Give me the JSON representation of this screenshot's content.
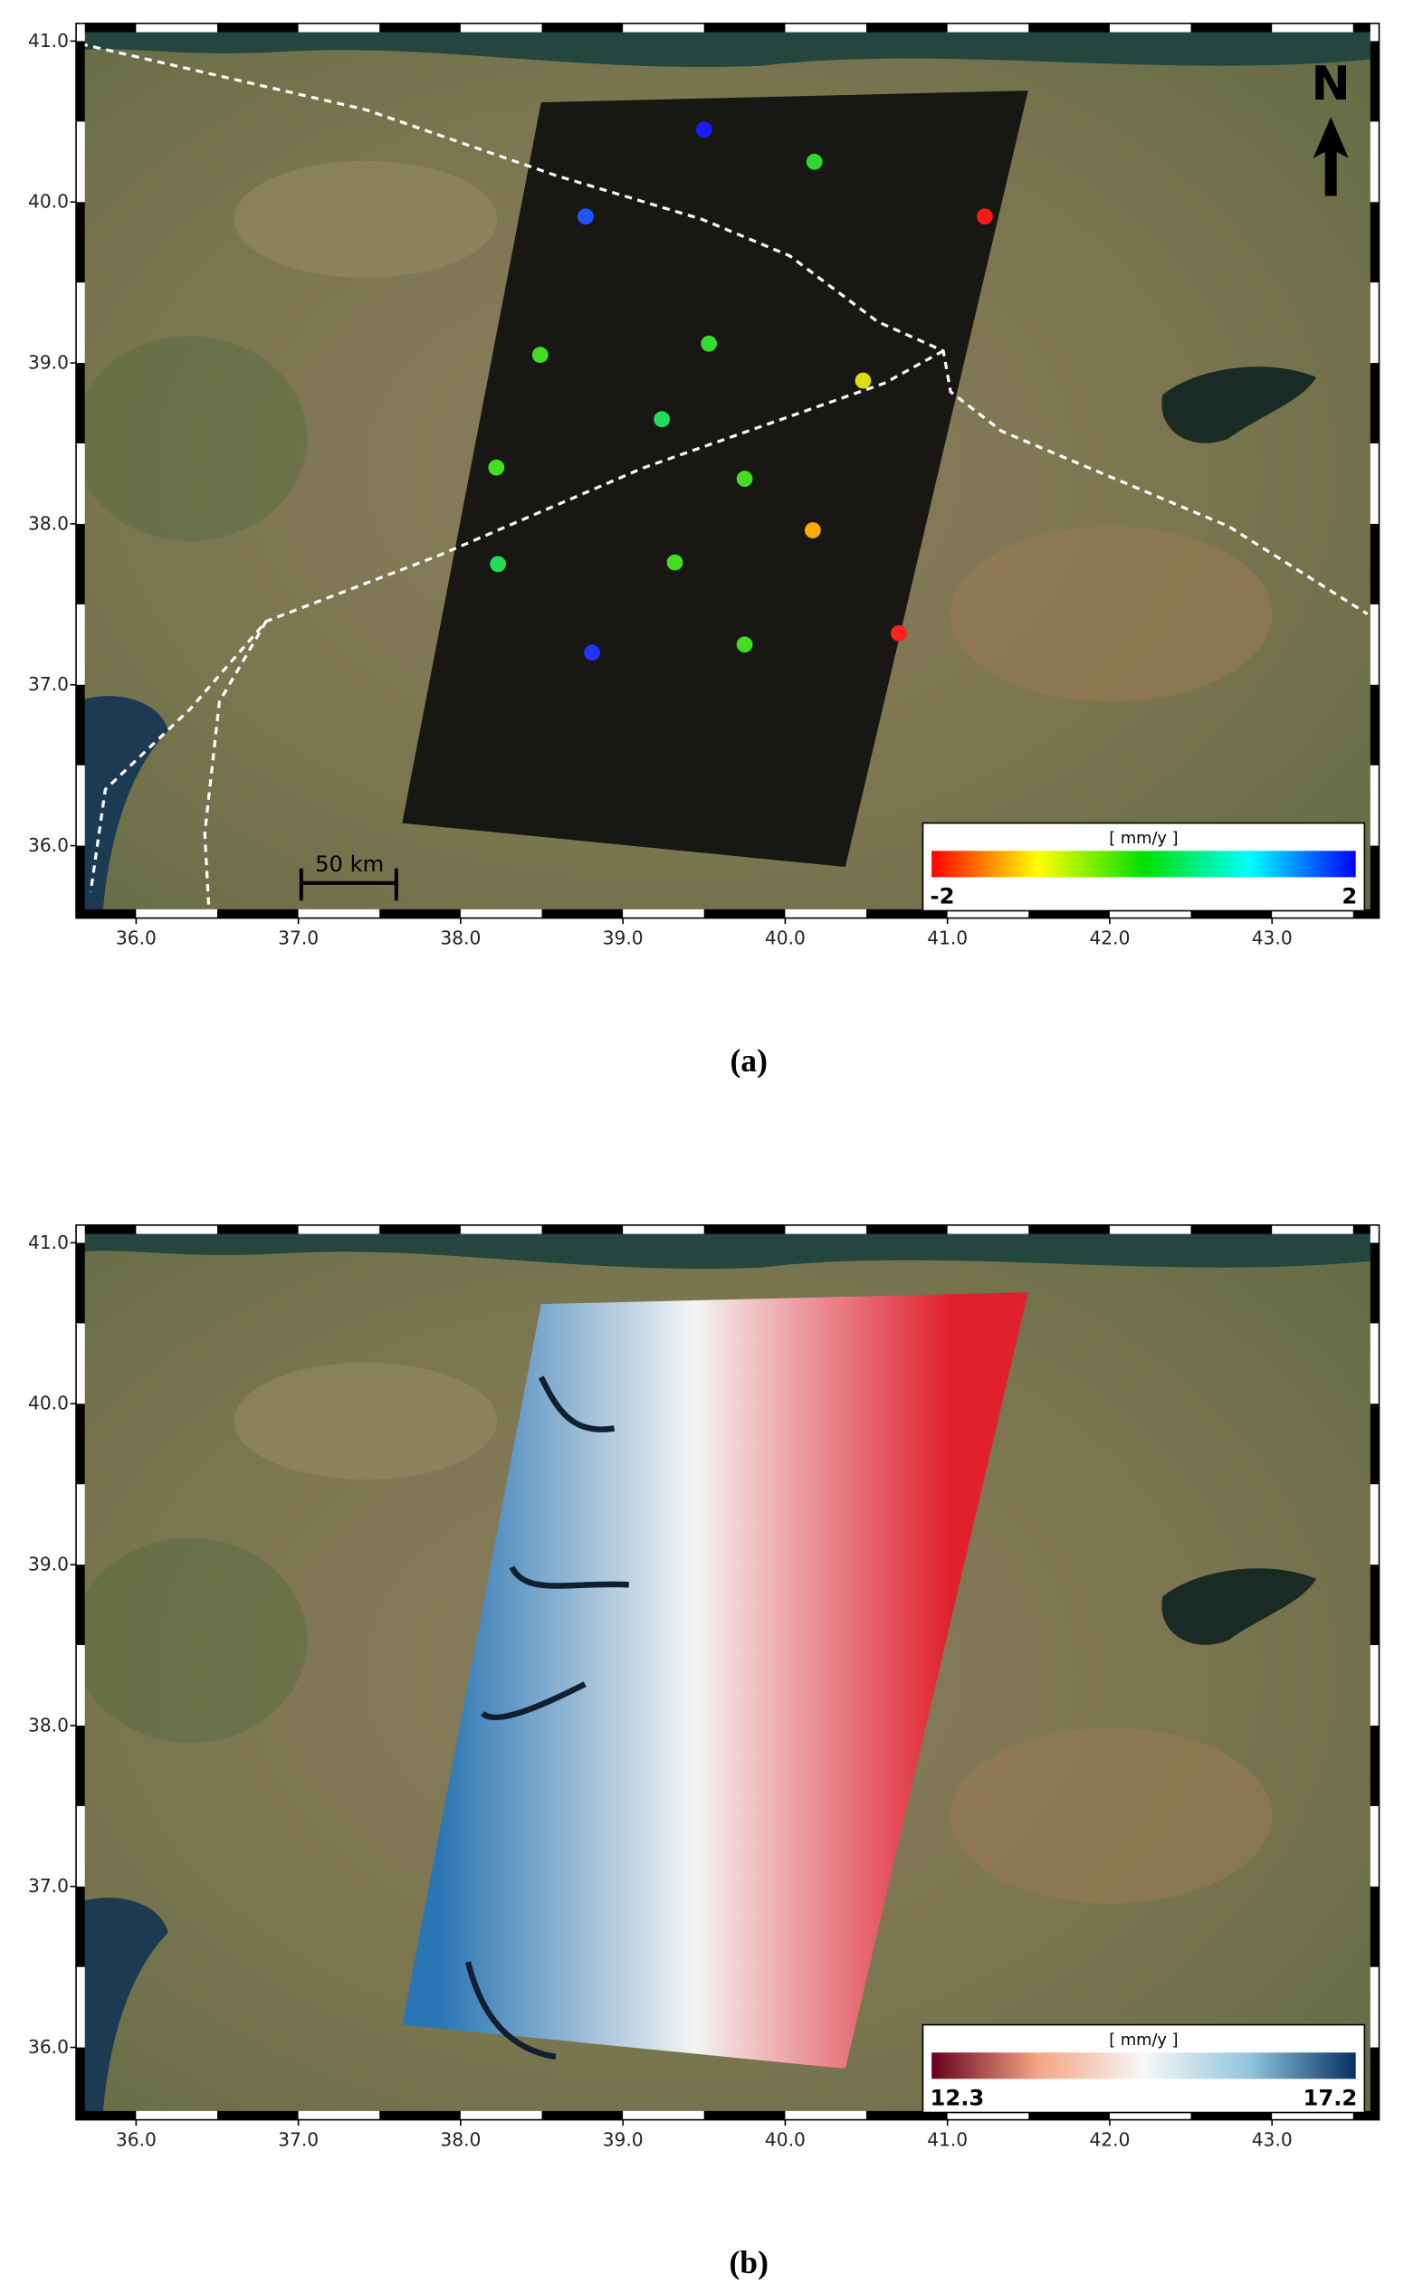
{
  "panels": [
    {
      "label": "(a)",
      "xlim": [
        35.63,
        43.66
      ],
      "ylim": [
        35.55,
        41.11
      ],
      "xticks": [
        {
          "value": 36,
          "label": "36.0"
        },
        {
          "value": 37,
          "label": "37.0"
        },
        {
          "value": 38,
          "label": "38.0"
        },
        {
          "value": 39,
          "label": "39.0"
        },
        {
          "value": 40,
          "label": "40.0"
        },
        {
          "value": 41,
          "label": "41.0"
        },
        {
          "value": 42,
          "label": "42.0"
        },
        {
          "value": 43,
          "label": "43.0"
        }
      ],
      "yticks": [
        {
          "value": 36,
          "label": "36.0"
        },
        {
          "value": 37,
          "label": "37.0"
        },
        {
          "value": 38,
          "label": "38.0"
        },
        {
          "value": 39,
          "label": "39.0"
        },
        {
          "value": 40,
          "label": "40.0"
        },
        {
          "value": 41,
          "label": "41.0"
        }
      ],
      "north": "N",
      "scale_bar": "50 km",
      "colorbar": {
        "title": "[ mm/y ]",
        "min": -2,
        "max": 2,
        "colors": [
          "#ff0000",
          "#ffff00",
          "#00e000",
          "#00ffff",
          "#0000ff"
        ]
      },
      "stations": [
        {
          "lon": 39.5,
          "lat": 40.45,
          "color": "#1a1aff"
        },
        {
          "lon": 40.18,
          "lat": 40.25,
          "color": "#2ed82e"
        },
        {
          "lon": 38.77,
          "lat": 39.91,
          "color": "#2255ff"
        },
        {
          "lon": 41.23,
          "lat": 39.91,
          "color": "#ff1a1a"
        },
        {
          "lon": 38.49,
          "lat": 39.05,
          "color": "#44dd22"
        },
        {
          "lon": 39.53,
          "lat": 39.12,
          "color": "#33dd33"
        },
        {
          "lon": 40.48,
          "lat": 38.89,
          "color": "#dddd11"
        },
        {
          "lon": 39.24,
          "lat": 38.65,
          "color": "#22dd55"
        },
        {
          "lon": 38.22,
          "lat": 38.35,
          "color": "#44dd22"
        },
        {
          "lon": 39.75,
          "lat": 38.28,
          "color": "#44dd22"
        },
        {
          "lon": 40.17,
          "lat": 37.96,
          "color": "#ffaa00"
        },
        {
          "lon": 38.23,
          "lat": 37.75,
          "color": "#22dd55"
        },
        {
          "lon": 39.32,
          "lat": 37.76,
          "color": "#44dd22"
        },
        {
          "lon": 40.7,
          "lat": 37.32,
          "color": "#ff2020"
        },
        {
          "lon": 38.81,
          "lat": 37.2,
          "color": "#2233ff"
        },
        {
          "lon": 39.75,
          "lat": 37.25,
          "color": "#44dd22"
        }
      ]
    },
    {
      "label": "(b)",
      "xlim": [
        35.63,
        43.66
      ],
      "ylim": [
        35.55,
        41.11
      ],
      "xticks": [
        {
          "value": 36,
          "label": "36.0"
        },
        {
          "value": 37,
          "label": "37.0"
        },
        {
          "value": 38,
          "label": "38.0"
        },
        {
          "value": 39,
          "label": "39.0"
        },
        {
          "value": 40,
          "label": "40.0"
        },
        {
          "value": 41,
          "label": "41.0"
        },
        {
          "value": 42,
          "label": "42.0"
        },
        {
          "value": 43,
          "label": "43.0"
        }
      ],
      "yticks": [
        {
          "value": 36,
          "label": "36.0"
        },
        {
          "value": 37,
          "label": "37.0"
        },
        {
          "value": 38,
          "label": "38.0"
        },
        {
          "value": 39,
          "label": "39.0"
        },
        {
          "value": 40,
          "label": "40.0"
        },
        {
          "value": 41,
          "label": "41.0"
        }
      ],
      "colorbar": {
        "title": "[ mm/y ]",
        "min": 12.3,
        "max": 17.2,
        "colors": [
          "#67001f",
          "#f4a582",
          "#f7f7f7",
          "#92c5de",
          "#053061"
        ]
      }
    }
  ]
}
